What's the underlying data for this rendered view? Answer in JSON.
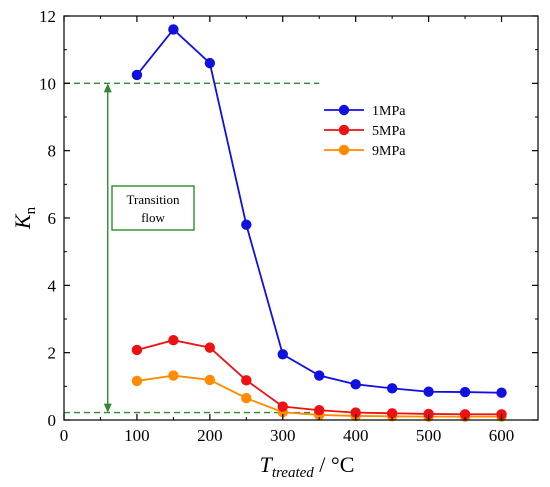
{
  "chart_data": {
    "type": "line",
    "x": [
      100,
      150,
      200,
      250,
      300,
      350,
      400,
      450,
      500,
      550,
      600
    ],
    "series": [
      {
        "name": "1MPa",
        "color": "#1010e0",
        "values": [
          10.25,
          11.6,
          10.6,
          5.8,
          1.95,
          1.32,
          1.06,
          0.94,
          0.84,
          0.83,
          0.81
        ]
      },
      {
        "name": "5MPa",
        "color": "#ee1111",
        "values": [
          2.08,
          2.37,
          2.15,
          1.18,
          0.4,
          0.29,
          0.22,
          0.2,
          0.18,
          0.17,
          0.17
        ]
      },
      {
        "name": "9MPa",
        "color": "#ff8c00",
        "values": [
          1.16,
          1.32,
          1.19,
          0.65,
          0.23,
          0.15,
          0.12,
          0.11,
          0.1,
          0.1,
          0.1
        ]
      }
    ],
    "xlim": [
      0,
      650
    ],
    "ylim": [
      0,
      12
    ],
    "xticks": [
      "0",
      "100",
      "200",
      "300",
      "400",
      "500",
      "600"
    ],
    "xtick_values": [
      0,
      100,
      200,
      300,
      400,
      500,
      600
    ],
    "yticks": [
      "0",
      "2",
      "4",
      "6",
      "8",
      "10",
      "12"
    ],
    "ytick_values": [
      0,
      2,
      4,
      6,
      8,
      10,
      12
    ],
    "xlabel_main": "T",
    "xlabel_sub": "treated",
    "xlabel_unit": " / °C",
    "ylabel_main": "K",
    "ylabel_sub": "n",
    "legend_position": "top-right",
    "grid": false,
    "annotations": {
      "upper_line_y": 10,
      "lower_line_y": 0.22,
      "line_x_end": 350,
      "arrow_x": 60,
      "box_text_line1": "Transition",
      "box_text_line2": "flow",
      "dash_color": "#2e8b2e"
    }
  }
}
